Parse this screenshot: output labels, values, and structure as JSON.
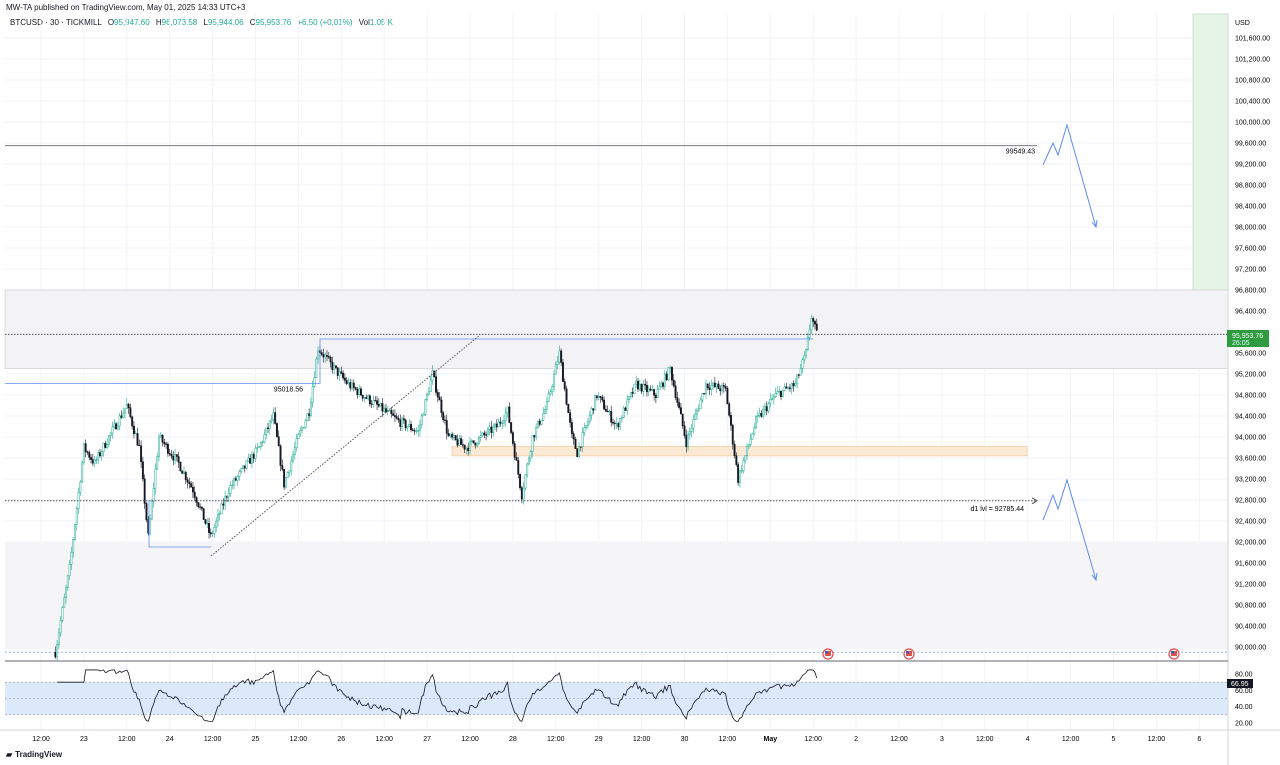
{
  "header": {
    "published": "MW-TA published on TradingView.com, May 01, 2025 14:33 UTC+3",
    "symbol": "BTCUSD · 30 · TICKMILL",
    "open_label": "O",
    "open": "95,947.60",
    "high_label": "H",
    "high": "96,073.58",
    "low_label": "L",
    "low": "95,944.06",
    "close_label": "C",
    "close": "95,953.76",
    "change": "+6.50 (+0.01%)",
    "vol_label": "Vol",
    "vol": "1.05 K"
  },
  "colors": {
    "up": "#22ab94",
    "down": "#131722",
    "accent_blue": "#5b8def",
    "green_zone": "#e6f4e8",
    "price_badge": "#2e9b3f",
    "orange_zone": "#f5d9b8"
  },
  "price_axis": {
    "currency": "USD",
    "labels": [
      "101,600.00",
      "101,200.00",
      "100,800.00",
      "100,400.00",
      "100,000.00",
      "99,600.00",
      "99,200.00",
      "98,800.00",
      "98,400.00",
      "98,000.00",
      "97,600.00",
      "97,200.00",
      "96,800.00",
      "96,400.00",
      "95,600.00",
      "95,200.00",
      "94,800.00",
      "94,400.00",
      "94,000.00",
      "93,600.00",
      "93,200.00",
      "92,800.00",
      "92,400.00",
      "92,000.00",
      "91,600.00",
      "91,200.00",
      "90,800.00",
      "90,400.00",
      "90,000.00"
    ],
    "current_price": "95,953.76",
    "countdown": "26:05"
  },
  "time_axis": {
    "labels": [
      {
        "t": "2025-04-22T12:00",
        "label": "12:00"
      },
      {
        "t": "2025-04-23T00:00",
        "label": "23"
      },
      {
        "t": "2025-04-23T12:00",
        "label": "12:00"
      },
      {
        "t": "2025-04-24T00:00",
        "label": "24"
      },
      {
        "t": "2025-04-24T12:00",
        "label": "12:00"
      },
      {
        "t": "2025-04-25T00:00",
        "label": "25"
      },
      {
        "t": "2025-04-25T12:00",
        "label": "12:00"
      },
      {
        "t": "2025-04-26T00:00",
        "label": "26"
      },
      {
        "t": "2025-04-26T12:00",
        "label": "12:00"
      },
      {
        "t": "2025-04-27T00:00",
        "label": "27"
      },
      {
        "t": "2025-04-27T12:00",
        "label": "12:00"
      },
      {
        "t": "2025-04-28T00:00",
        "label": "28"
      },
      {
        "t": "2025-04-28T12:00",
        "label": "12:00"
      },
      {
        "t": "2025-04-29T00:00",
        "label": "29"
      },
      {
        "t": "2025-04-29T12:00",
        "label": "12:00"
      },
      {
        "t": "2025-04-30T00:00",
        "label": "30"
      },
      {
        "t": "2025-04-30T12:00",
        "label": "12:00"
      },
      {
        "t": "2025-05-01T00:00",
        "label": "May"
      },
      {
        "t": "2025-05-01T12:00",
        "label": "12:00"
      },
      {
        "t": "2025-05-02T00:00",
        "label": "2"
      },
      {
        "t": "2025-05-02T12:00",
        "label": "12:00"
      },
      {
        "t": "2025-05-03T00:00",
        "label": "3"
      },
      {
        "t": "2025-05-03T12:00",
        "label": "12:00"
      },
      {
        "t": "2025-05-04T00:00",
        "label": "4"
      },
      {
        "t": "2025-05-04T12:00",
        "label": "12:00"
      },
      {
        "t": "2025-05-05T00:00",
        "label": "5"
      },
      {
        "t": "2025-05-05T12:00",
        "label": "12:00"
      },
      {
        "t": "2025-05-06T00:00",
        "label": "6"
      }
    ]
  },
  "chart_data": {
    "type": "candlestick",
    "interval": "30",
    "price_path": [
      [
        "2025-04-22T16:00",
        89900
      ],
      [
        "2025-04-22T20:00",
        91500
      ],
      [
        "2025-04-23T00:00",
        93800
      ],
      [
        "2025-04-23T03:00",
        93500
      ],
      [
        "2025-04-23T07:00",
        94000
      ],
      [
        "2025-04-23T12:00",
        94600
      ],
      [
        "2025-04-23T15:30",
        93800
      ],
      [
        "2025-04-23T18:00",
        92100
      ],
      [
        "2025-04-23T21:00",
        94000
      ],
      [
        "2025-04-24T02:30",
        93500
      ],
      [
        "2025-04-24T06:30",
        93000
      ],
      [
        "2025-04-24T11:30",
        92100
      ],
      [
        "2025-04-24T16:30",
        93000
      ],
      [
        "2025-04-25T01:00",
        93800
      ],
      [
        "2025-04-25T05:00",
        94400
      ],
      [
        "2025-04-25T08:00",
        93100
      ],
      [
        "2025-04-25T12:00",
        94000
      ],
      [
        "2025-04-25T15:00",
        94500
      ],
      [
        "2025-04-25T17:30",
        95700
      ],
      [
        "2025-04-25T22:00",
        95300
      ],
      [
        "2025-04-26T02:00",
        95000
      ],
      [
        "2025-04-26T10:00",
        94600
      ],
      [
        "2025-04-26T16:00",
        94300
      ],
      [
        "2025-04-26T21:30",
        94100
      ],
      [
        "2025-04-27T01:30",
        95200
      ],
      [
        "2025-04-27T06:00",
        94000
      ],
      [
        "2025-04-27T11:00",
        93800
      ],
      [
        "2025-04-27T19:30",
        94200
      ],
      [
        "2025-04-27T22:30",
        94500
      ],
      [
        "2025-04-28T02:30",
        92900
      ],
      [
        "2025-04-28T05:30",
        94000
      ],
      [
        "2025-04-28T09:30",
        94600
      ],
      [
        "2025-04-28T13:00",
        95600
      ],
      [
        "2025-04-28T16:30",
        94000
      ],
      [
        "2025-04-28T18:00",
        93700
      ],
      [
        "2025-04-28T23:30",
        94800
      ],
      [
        "2025-04-29T05:00",
        94200
      ],
      [
        "2025-04-29T10:30",
        95000
      ],
      [
        "2025-04-29T16:00",
        94800
      ],
      [
        "2025-04-29T20:00",
        95300
      ],
      [
        "2025-04-30T00:30",
        93900
      ],
      [
        "2025-04-30T06:00",
        95000
      ],
      [
        "2025-04-30T11:30",
        94900
      ],
      [
        "2025-04-30T15:00",
        93200
      ],
      [
        "2025-04-30T20:00",
        94300
      ],
      [
        "2025-05-01T01:30",
        94800
      ],
      [
        "2025-05-01T07:00",
        95000
      ],
      [
        "2025-05-01T10:00",
        95600
      ],
      [
        "2025-05-01T11:30",
        96300
      ],
      [
        "2025-05-01T13:00",
        95953.76
      ]
    ],
    "rsi": {
      "current": "66.95",
      "labels": [
        "80.00",
        "60.00",
        "40.00",
        "20.00"
      ],
      "band": [
        30,
        70
      ]
    }
  },
  "drawings": {
    "resistance_label": "99549.43",
    "resistance": 99549.43,
    "level_label": "95018.56",
    "level": 95018.56,
    "d1_label": "d1 lvl = 92785.44",
    "d1": 92785.44
  },
  "footer": {
    "brand": "TradingView"
  }
}
